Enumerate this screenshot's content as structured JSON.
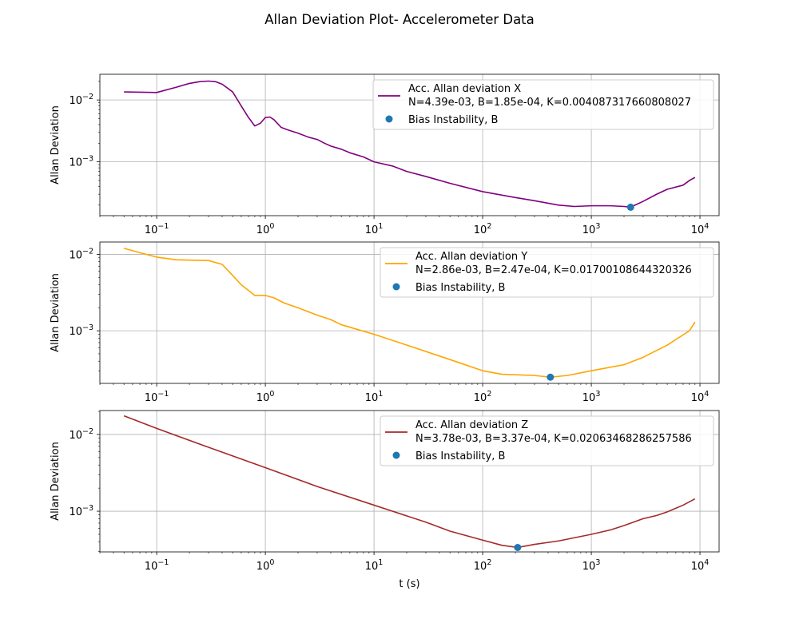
{
  "figure": {
    "title": "Allan Deviation Plot- Accelerometer Data"
  },
  "chart_data": [
    {
      "type": "line",
      "title": "",
      "xlabel": "",
      "ylabel": "Allan Deviation",
      "xscale": "log",
      "yscale": "log",
      "xlim": [
        0.03,
        15000
      ],
      "ylim": [
        0.000135,
        0.026
      ],
      "xticks": [
        {
          "value": 0.1,
          "base": "10",
          "exp": "−1"
        },
        {
          "value": 1,
          "base": "10",
          "exp": "0"
        },
        {
          "value": 10,
          "base": "10",
          "exp": "1"
        },
        {
          "value": 100,
          "base": "10",
          "exp": "2"
        },
        {
          "value": 1000,
          "base": "10",
          "exp": "3"
        },
        {
          "value": 10000,
          "base": "10",
          "exp": "4"
        }
      ],
      "yticks": [
        {
          "value": 0.001,
          "base": "10",
          "exp": "−3"
        },
        {
          "value": 0.01,
          "base": "10",
          "exp": "−2"
        }
      ],
      "grid": true,
      "legend_position": "upper right",
      "color": "#800080",
      "series": [
        {
          "name": "Acc. Allan deviation X",
          "x": [
            0.05,
            0.1,
            0.15,
            0.2,
            0.25,
            0.3,
            0.35,
            0.4,
            0.5,
            0.6,
            0.7,
            0.8,
            0.9,
            1.0,
            1.1,
            1.2,
            1.4,
            1.6,
            2.0,
            2.5,
            3.0,
            3.5,
            4.0,
            5.0,
            6.0,
            8.0,
            10,
            15,
            20,
            30,
            50,
            100,
            200,
            300,
            500,
            700,
            1000,
            1500,
            2000,
            2300,
            3000,
            4000,
            5000,
            7000,
            8000,
            9000
          ],
          "y": [
            0.0135,
            0.0132,
            0.016,
            0.0185,
            0.0198,
            0.0202,
            0.0197,
            0.018,
            0.0135,
            0.008,
            0.0052,
            0.0038,
            0.0042,
            0.0052,
            0.0053,
            0.0048,
            0.0036,
            0.0033,
            0.0029,
            0.0025,
            0.0023,
            0.002,
            0.0018,
            0.0016,
            0.0014,
            0.0012,
            0.001,
            0.00085,
            0.0007,
            0.00058,
            0.00045,
            0.00033,
            0.000265,
            0.000235,
            0.0002,
            0.00019,
            0.000195,
            0.000195,
            0.00019,
            0.000185,
            0.00023,
            0.0003,
            0.00036,
            0.00042,
            0.0005,
            0.00056
          ]
        }
      ],
      "legend": {
        "series_label": "Acc. Allan deviation X",
        "params": "N=4.39e-03, B=1.85e-04, K=0.004087317660808027",
        "marker_label": "Bias Instability, B"
      },
      "bias_point": {
        "x": 2300,
        "y": 0.000185,
        "color": "#1f77b4"
      }
    },
    {
      "type": "line",
      "title": "",
      "xlabel": "",
      "ylabel": "Allan Deviation",
      "xscale": "log",
      "yscale": "log",
      "xlim": [
        0.03,
        15000
      ],
      "ylim": [
        0.000205,
        0.0145
      ],
      "xticks": [
        {
          "value": 0.1,
          "base": "10",
          "exp": "−1"
        },
        {
          "value": 1,
          "base": "10",
          "exp": "0"
        },
        {
          "value": 10,
          "base": "10",
          "exp": "1"
        },
        {
          "value": 100,
          "base": "10",
          "exp": "2"
        },
        {
          "value": 1000,
          "base": "10",
          "exp": "3"
        },
        {
          "value": 10000,
          "base": "10",
          "exp": "4"
        }
      ],
      "yticks": [
        {
          "value": 0.001,
          "base": "10",
          "exp": "−3"
        },
        {
          "value": 0.01,
          "base": "10",
          "exp": "−2"
        }
      ],
      "grid": true,
      "legend_position": "upper right",
      "color": "#ffa500",
      "series": [
        {
          "name": "Acc. Allan deviation Y",
          "x": [
            0.05,
            0.07,
            0.1,
            0.15,
            0.2,
            0.3,
            0.4,
            0.5,
            0.6,
            0.8,
            1.0,
            1.2,
            1.5,
            2.0,
            3.0,
            4.0,
            5.0,
            10,
            20,
            50,
            100,
            150,
            300,
            420,
            600,
            1000,
            2000,
            3000,
            5000,
            8000,
            9000
          ],
          "y": [
            0.012,
            0.0105,
            0.0092,
            0.0085,
            0.0084,
            0.0083,
            0.0074,
            0.0053,
            0.004,
            0.0029,
            0.0029,
            0.0027,
            0.0023,
            0.002,
            0.0016,
            0.0014,
            0.0012,
            0.0009,
            0.00065,
            0.00042,
            0.0003,
            0.00027,
            0.00026,
            0.000247,
            0.00026,
            0.0003,
            0.00036,
            0.00045,
            0.00065,
            0.001,
            0.0013
          ]
        }
      ],
      "legend": {
        "series_label": "Acc. Allan deviation Y",
        "params": "N=2.86e-03, B=2.47e-04, K=0.01700108644320326",
        "marker_label": "Bias Instability, B"
      },
      "bias_point": {
        "x": 420,
        "y": 0.000247,
        "color": "#1f77b4"
      }
    },
    {
      "type": "line",
      "title": "",
      "xlabel": "t (s)",
      "ylabel": "Allan Deviation",
      "xscale": "log",
      "yscale": "log",
      "xlim": [
        0.03,
        15000
      ],
      "ylim": [
        0.000295,
        0.0205
      ],
      "xticks": [
        {
          "value": 0.1,
          "base": "10",
          "exp": "−1"
        },
        {
          "value": 1,
          "base": "10",
          "exp": "0"
        },
        {
          "value": 10,
          "base": "10",
          "exp": "1"
        },
        {
          "value": 100,
          "base": "10",
          "exp": "2"
        },
        {
          "value": 1000,
          "base": "10",
          "exp": "3"
        },
        {
          "value": 10000,
          "base": "10",
          "exp": "4"
        }
      ],
      "yticks": [
        {
          "value": 0.001,
          "base": "10",
          "exp": "−3"
        },
        {
          "value": 0.01,
          "base": "10",
          "exp": "−2"
        }
      ],
      "grid": true,
      "legend_position": "upper right",
      "color": "#a52a2a",
      "series": [
        {
          "name": "Acc. Allan deviation Z",
          "x": [
            0.05,
            0.1,
            0.3,
            1,
            3,
            10,
            30,
            50,
            100,
            150,
            210,
            300,
            500,
            1000,
            1500,
            2000,
            3000,
            4000,
            5000,
            7000,
            9000
          ],
          "y": [
            0.0175,
            0.012,
            0.0068,
            0.0037,
            0.0021,
            0.0012,
            0.00072,
            0.00055,
            0.00042,
            0.00036,
            0.000337,
            0.00037,
            0.00041,
            0.0005,
            0.00057,
            0.00065,
            0.0008,
            0.00088,
            0.00098,
            0.0012,
            0.00145
          ]
        }
      ],
      "legend": {
        "series_label": "Acc. Allan deviation Z",
        "params": "N=3.78e-03, B=3.37e-04, K=0.02063468286257586",
        "marker_label": "Bias Instability, B"
      },
      "bias_point": {
        "x": 210,
        "y": 0.000337,
        "color": "#1f77b4"
      }
    }
  ]
}
